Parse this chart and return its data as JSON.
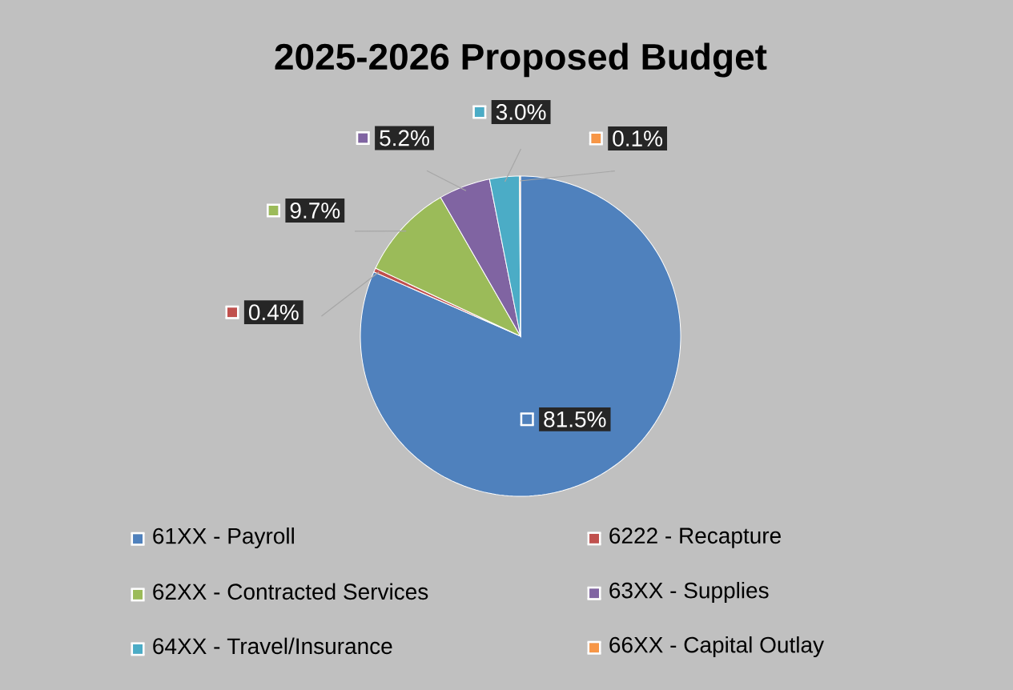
{
  "chart_data": {
    "type": "pie",
    "title": "2025-2026 Proposed Budget",
    "categories": [
      "61XX - Payroll",
      "6222 - Recapture",
      "62XX - Contracted Services",
      "63XX - Supplies",
      "64XX - Travel/Insurance",
      "66XX - Capital Outlay"
    ],
    "values": [
      81.5,
      0.4,
      9.7,
      5.2,
      3.0,
      0.1
    ],
    "colors": [
      "#4f81bd",
      "#c0504d",
      "#9bbb59",
      "#8064a2",
      "#4bacc6",
      "#f79646"
    ],
    "value_labels": [
      "81.5%",
      "0.4%",
      "9.7%",
      "5.2%",
      "3.0%",
      "0.1%"
    ],
    "legend": "bottom"
  }
}
